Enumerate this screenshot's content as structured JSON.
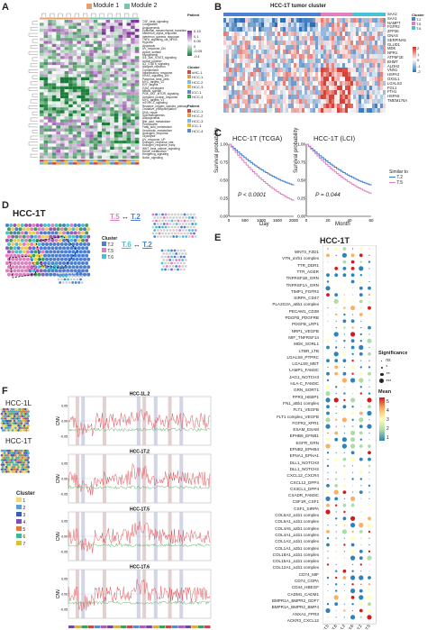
{
  "panels": {
    "A": {
      "label": "A",
      "legend_modules": [
        "Module 1",
        "Module 2"
      ],
      "module_colors": [
        "#e8a070",
        "#79c3b0"
      ],
      "patient_title": "Patient",
      "patients": [
        "HCC-1",
        "HCC-2",
        "HCC-3",
        "ICC-1",
        "HCC-4"
      ],
      "patient_colors": [
        "#c94a4a",
        "#e69e4a",
        "#7fb8e0",
        "#e0c23a",
        "#5b8bc9"
      ],
      "cluster_title": "Cluster",
      "clusters": [
        "cHC-1",
        "HCC-1",
        "HCC-2",
        "HCC-3",
        "ICC-1",
        "HCC-4"
      ],
      "scale_ticks": [
        "0.15",
        "0.1",
        "0.05",
        "0",
        "-0.05",
        "-0.1"
      ],
      "pathways": [
        "TGF_beta_signaling",
        "Coagulation",
        "Angiogenesis",
        "Epithelial_mesenchymal_transition",
        "Interferon_alpha_response",
        "Interferon_gamma_response",
        "TNFA_signaling_via_NFKB",
        "Hypoxia",
        "Apoptosis",
        "UV_response_DN",
        "Apical_surface",
        "Myogenesis",
        "IL6_JAK_STAT3_signaling",
        "Apical_junction",
        "IL2_STAT5_signaling",
        "Allograft_rejection",
        "Complement",
        "Inflammatory_response",
        "KRAS_signaling_DN",
        "Pancreas_beta_cells",
        "MYC_targets_V2",
        "E2F_targets",
        "G2M_checkpoint",
        "Mitotic_spindle",
        "PI3K_AKT_MTOR_signaling",
        "Unfolded_protein_response",
        "MYC_targets_V1",
        "mTORC1_signaling",
        "Reactive_oxygen_species_pathway",
        "Oxidative_phosphorylation",
        "DNA_repair",
        "Spermatogenesis",
        "Adipogenesis",
        "Bile_acid_metabolism",
        "Peroxisome",
        "Fatty_acid_metabolism",
        "Xenobiotic_metabolism",
        "Androgen_response",
        "Glycolysis",
        "UV_response_UP",
        "Estrogen_response_late",
        "Estrogen_response_early",
        "WNT_beta_catenin_signaling",
        "Heme_metabolism",
        "Hedgehog_signaling",
        "Notch_signaling"
      ]
    },
    "B": {
      "label": "B",
      "title": "HCC-1T tumor cluster",
      "genes": [
        "SAA2",
        "SAA1",
        "NAMPT",
        "FGFR2",
        "ZFP36",
        "GNAS",
        "SERPINA5",
        "GLUD1",
        "MDK",
        "NPR1",
        "ATP5F1E",
        "BHMT",
        "ALDH2",
        "VNN1",
        "HSPA2",
        "OXSL1",
        "LGALS3",
        "FGL1",
        "FTH1",
        "HSPA8",
        "TMEM176A"
      ],
      "legend_title": "Cluster",
      "legend_items": [
        "T.2",
        "T.5",
        "T.6"
      ],
      "cluster_colors": [
        "#4d7fd1",
        "#e07fc0",
        "#45c2d6"
      ],
      "scale_ticks": [
        "2",
        "1",
        "0",
        "-1",
        "-2"
      ]
    },
    "C": {
      "label": "C",
      "plots": [
        {
          "title": "HCC-1T (TCGA)",
          "xlabel": "Day",
          "ylabel": "Survival probability",
          "pvalue": "P < 0.0001",
          "xticks": [
            "0",
            "500",
            "1000",
            "1500",
            "2000"
          ],
          "yticks": [
            "0.00",
            "0.25",
            "0.50",
            "0.75",
            "1.00"
          ]
        },
        {
          "title": "HCC-1T (LCI)",
          "xlabel": "Month",
          "ylabel": "Survival probability",
          "pvalue": "P = 0.044",
          "xticks": [
            "0",
            "20",
            "40",
            "60"
          ],
          "yticks": [
            "0.00",
            "0.25",
            "0.50",
            "0.75",
            "1.00"
          ]
        }
      ],
      "legend_title": "Similar to",
      "legend_items": [
        "T.2",
        "T.5"
      ]
    },
    "D": {
      "label": "D",
      "title": "HCC-1T",
      "legend_title": "Cluster",
      "legend_items": [
        "T.2",
        "T.5",
        "T.6"
      ],
      "pairs": [
        {
          "left": "T.5",
          "right": "T.2"
        },
        {
          "left": "T.6",
          "right": "T.2"
        },
        {
          "left": "T.5",
          "right": "T.6"
        }
      ]
    },
    "E": {
      "label": "E",
      "title": "HCC-1T",
      "pairs": [
        "WNT3_FZD1",
        "VTN_aVb1 complex",
        "TTR_DDR1",
        "TTR_AGER",
        "TNFRSF1B_GRN",
        "TNFRSF1A_GRN",
        "TIMP1_FGFR2",
        "SIRPA_CD47",
        "PLA2G2A_a5b1 complex",
        "PECAM1_CD38",
        "PDGFB_PDGFRB",
        "PDGFB_LRP1",
        "NRP1_VEGFB",
        "MIF_TNFRSF14",
        "MDK_SORL1",
        "LTBR_LTB",
        "LGALS9_PTPRC",
        "LGALS9_MET",
        "LAMP1_FAM3C",
        "JAG1_NOTCH3",
        "HLA-C_FAM3C",
        "GRN_SORT1",
        "FPR3_HEBP1",
        "FN1_a5b1 complex",
        "FLT1_VEGFB",
        "FLT1 complex_VEGFB",
        "FGFR2_XPR1",
        "ESAM_ESAM",
        "EPHB6_EFNB1",
        "EGFR_GRN",
        "EFNB2_EPHB4",
        "EFNA1_EPHA1",
        "DLL1_NOTCH3",
        "DLL1_NOTCH2",
        "CXCL12_CXCR4",
        "CXCL12_DPP4",
        "CX3CL1_DPP4",
        "CXADR_FAM3C",
        "CSF1R_CSF1",
        "CSF1_SIRPA",
        "COL6A2_a1b1 complex",
        "COL6A1_a1b1 complex",
        "COL4A5_a2b1 complex",
        "COL4A1_a1b1 complex",
        "COL1A2_a1b1 complex",
        "COL1A1_a2b1 complex",
        "COL18A1_a1b1 complex",
        "COL15A1_a1b1 complex",
        "COL12A1_a1b1 complex",
        "CD74_MIF",
        "CD74_COPA",
        "CD44_HBEGF",
        "CADM1_CADM1",
        "BMPR1A_BMPR2_GDF7",
        "BMPR1A_BMPR2_BMP4",
        "ANXA1_FPR3",
        "ACKR3_CXCL12"
      ],
      "xlabels": [
        "T.2|T.5",
        "T.2|T.6",
        "T.5|T.2",
        "T.5|T.6",
        "T.6|T.2",
        "T.6|T.5"
      ],
      "significance_title": "Significance",
      "significance_items": [
        "ns",
        "*",
        "**",
        "***"
      ],
      "mean_title": "Mean",
      "mean_ticks": [
        "5",
        "4",
        "3",
        "2",
        "1"
      ]
    },
    "F": {
      "label": "F",
      "samples": [
        "HCC-1L",
        "HCC-1T"
      ],
      "cluster_title": "Cluster",
      "clusters": [
        "1",
        "2",
        "3",
        "4",
        "5",
        "6",
        "7"
      ],
      "cluster_colors": [
        "#f5d76e",
        "#5aa0d6",
        "#3a5fb0",
        "#7a52b0",
        "#e07b39",
        "#3fb89a",
        "#d6c33c"
      ],
      "tracks": [
        "HCC-1L.2",
        "HCC-1T.2",
        "HCC-1T.5",
        "HCC-1T.6"
      ],
      "ylabel": "CNV",
      "yticks": [
        "0.05",
        "0.00",
        "-0.05"
      ],
      "chromosomes": [
        "1",
        "2",
        "3",
        "4",
        "5",
        "6",
        "7",
        "8",
        "9",
        "10",
        "11",
        "12",
        "13",
        "14",
        "15",
        "16",
        "17",
        "18",
        "19",
        "20",
        "21",
        "22"
      ]
    }
  }
}
